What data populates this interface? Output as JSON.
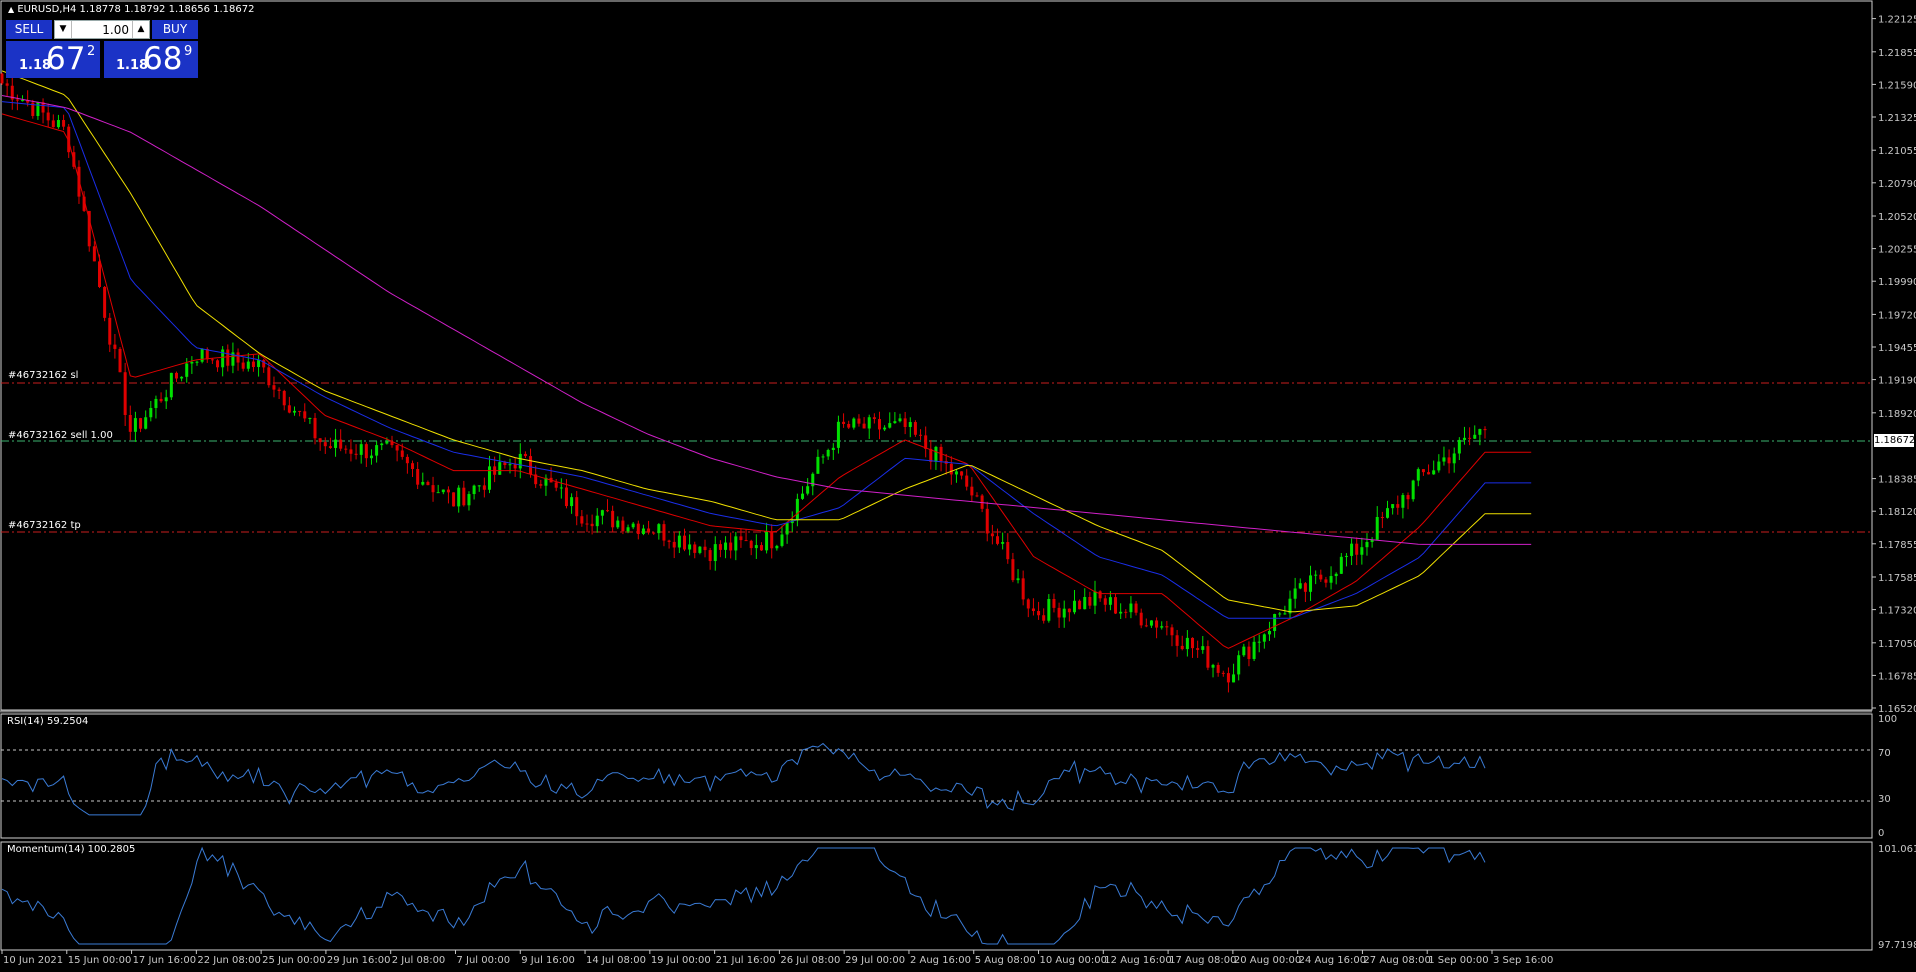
{
  "header": {
    "symbol_line": "EURUSD,H4  1.18778 1.18792 1.18656 1.18672"
  },
  "trade_panel": {
    "sell_label": "SELL",
    "buy_label": "BUY",
    "volume": "1.00",
    "sell_price_prefix": "1.18",
    "sell_price_big": "67",
    "sell_price_sup": "2",
    "buy_price_prefix": "1.18",
    "buy_price_big": "68",
    "buy_price_sup": "9"
  },
  "order_lines": {
    "sl_label": "#46732162 sl",
    "entry_label": "#46732162 sell 1.00",
    "tp_label": "#46732162 tp",
    "sl_price": 1.1914,
    "entry_price": 1.18672,
    "tp_price": 1.1794
  },
  "current_price": "1.18672",
  "price_axis": {
    "ticks": [
      "1.22125",
      "1.21855",
      "1.21590",
      "1.21325",
      "1.21055",
      "1.20790",
      "1.20520",
      "1.20255",
      "1.19990",
      "1.19720",
      "1.19455",
      "1.19190",
      "1.18920",
      "1.18385",
      "1.18120",
      "1.17855",
      "1.17585",
      "1.17320",
      "1.17050",
      "1.16785",
      "1.16520"
    ]
  },
  "time_axis": {
    "labels": [
      "10 Jun 2021",
      "15 Jun 00:00",
      "17 Jun 16:00",
      "22 Jun 08:00",
      "25 Jun 00:00",
      "29 Jun 16:00",
      "2 Jul 08:00",
      "7 Jul 00:00",
      "9 Jul 16:00",
      "14 Jul 08:00",
      "19 Jul 00:00",
      "21 Jul 16:00",
      "26 Jul 08:00",
      "29 Jul 00:00",
      "2 Aug 16:00",
      "5 Aug 08:00",
      "10 Aug 00:00",
      "12 Aug 16:00",
      "17 Aug 08:00",
      "20 Aug 00:00",
      "24 Aug 16:00",
      "27 Aug 08:00",
      "1 Sep 00:00",
      "3 Sep 16:00"
    ]
  },
  "rsi_panel": {
    "label": "RSI(14) 59.2504",
    "ticks": [
      "100",
      "70",
      "30",
      "0"
    ],
    "levels": [
      70,
      30
    ]
  },
  "momentum_panel": {
    "label": "Momentum(14) 100.2805",
    "ticks": [
      "101.0613",
      "97.7198"
    ]
  },
  "colors": {
    "bull": "#00e000",
    "bear": "#e00000",
    "ma_fast": "#00c800",
    "ma_mid": "#e00000",
    "ma_slow": "#1a2ee8",
    "ma_yellow": "#f0e000",
    "ma_long": "#d020c8",
    "indicator_line": "#3a7bd5",
    "order_line": "#c81e1e",
    "entry_line": "#3cb371"
  },
  "chart_data": {
    "type": "line",
    "title": "EURUSD,H4",
    "x": [
      "10 Jun 2021",
      "15 Jun 00:00",
      "17 Jun 16:00",
      "22 Jun 08:00",
      "25 Jun 00:00",
      "29 Jun 16:00",
      "2 Jul 08:00",
      "7 Jul 00:00",
      "9 Jul 16:00",
      "14 Jul 08:00",
      "19 Jul 00:00",
      "21 Jul 16:00",
      "26 Jul 08:00",
      "29 Jul 00:00",
      "2 Aug 16:00",
      "5 Aug 08:00",
      "10 Aug 00:00",
      "12 Aug 16:00",
      "17 Aug 08:00",
      "20 Aug 00:00",
      "24 Aug 16:00",
      "27 Aug 08:00",
      "1 Sep 00:00",
      "3 Sep 16:00"
    ],
    "series": [
      {
        "values": [
          1.216,
          1.212,
          1.1875,
          1.194,
          1.193,
          1.1865,
          1.186,
          1.182,
          1.1855,
          1.181,
          1.18,
          1.178,
          1.179,
          1.188,
          1.188,
          1.183,
          1.173,
          1.174,
          1.172,
          1.168,
          1.174,
          1.178,
          1.184,
          1.188
        ]
      },
      {
        "values": [
          1.2135,
          1.212,
          1.192,
          1.1935,
          1.194,
          1.189,
          1.187,
          1.1845,
          1.1845,
          1.183,
          1.1815,
          1.18,
          1.1795,
          1.184,
          1.187,
          1.185,
          1.1775,
          1.1745,
          1.1745,
          1.17,
          1.1725,
          1.1755,
          1.18,
          1.186
        ]
      },
      {
        "values": [
          1.2145,
          1.214,
          1.2,
          1.1945,
          1.1935,
          1.1905,
          1.188,
          1.186,
          1.185,
          1.184,
          1.1825,
          1.181,
          1.18,
          1.1815,
          1.1855,
          1.185,
          1.181,
          1.1775,
          1.176,
          1.1725,
          1.1725,
          1.1745,
          1.1775,
          1.1835
        ]
      },
      {
        "values": [
          1.217,
          1.215,
          1.207,
          1.198,
          1.194,
          1.191,
          1.189,
          1.187,
          1.1855,
          1.1845,
          1.183,
          1.182,
          1.1805,
          1.1805,
          1.183,
          1.185,
          1.1825,
          1.18,
          1.178,
          1.174,
          1.173,
          1.1735,
          1.176,
          1.181
        ]
      },
      {
        "values": [
          1.215,
          1.214,
          1.212,
          1.209,
          1.206,
          1.2025,
          1.199,
          1.196,
          1.193,
          1.19,
          1.1875,
          1.1855,
          1.184,
          1.183,
          1.1825,
          1.182,
          1.1815,
          1.181,
          1.1805,
          1.18,
          1.1795,
          1.179,
          1.1785,
          1.1785
        ]
      }
    ],
    "ylim": [
      1.1652,
      1.2226
    ]
  }
}
